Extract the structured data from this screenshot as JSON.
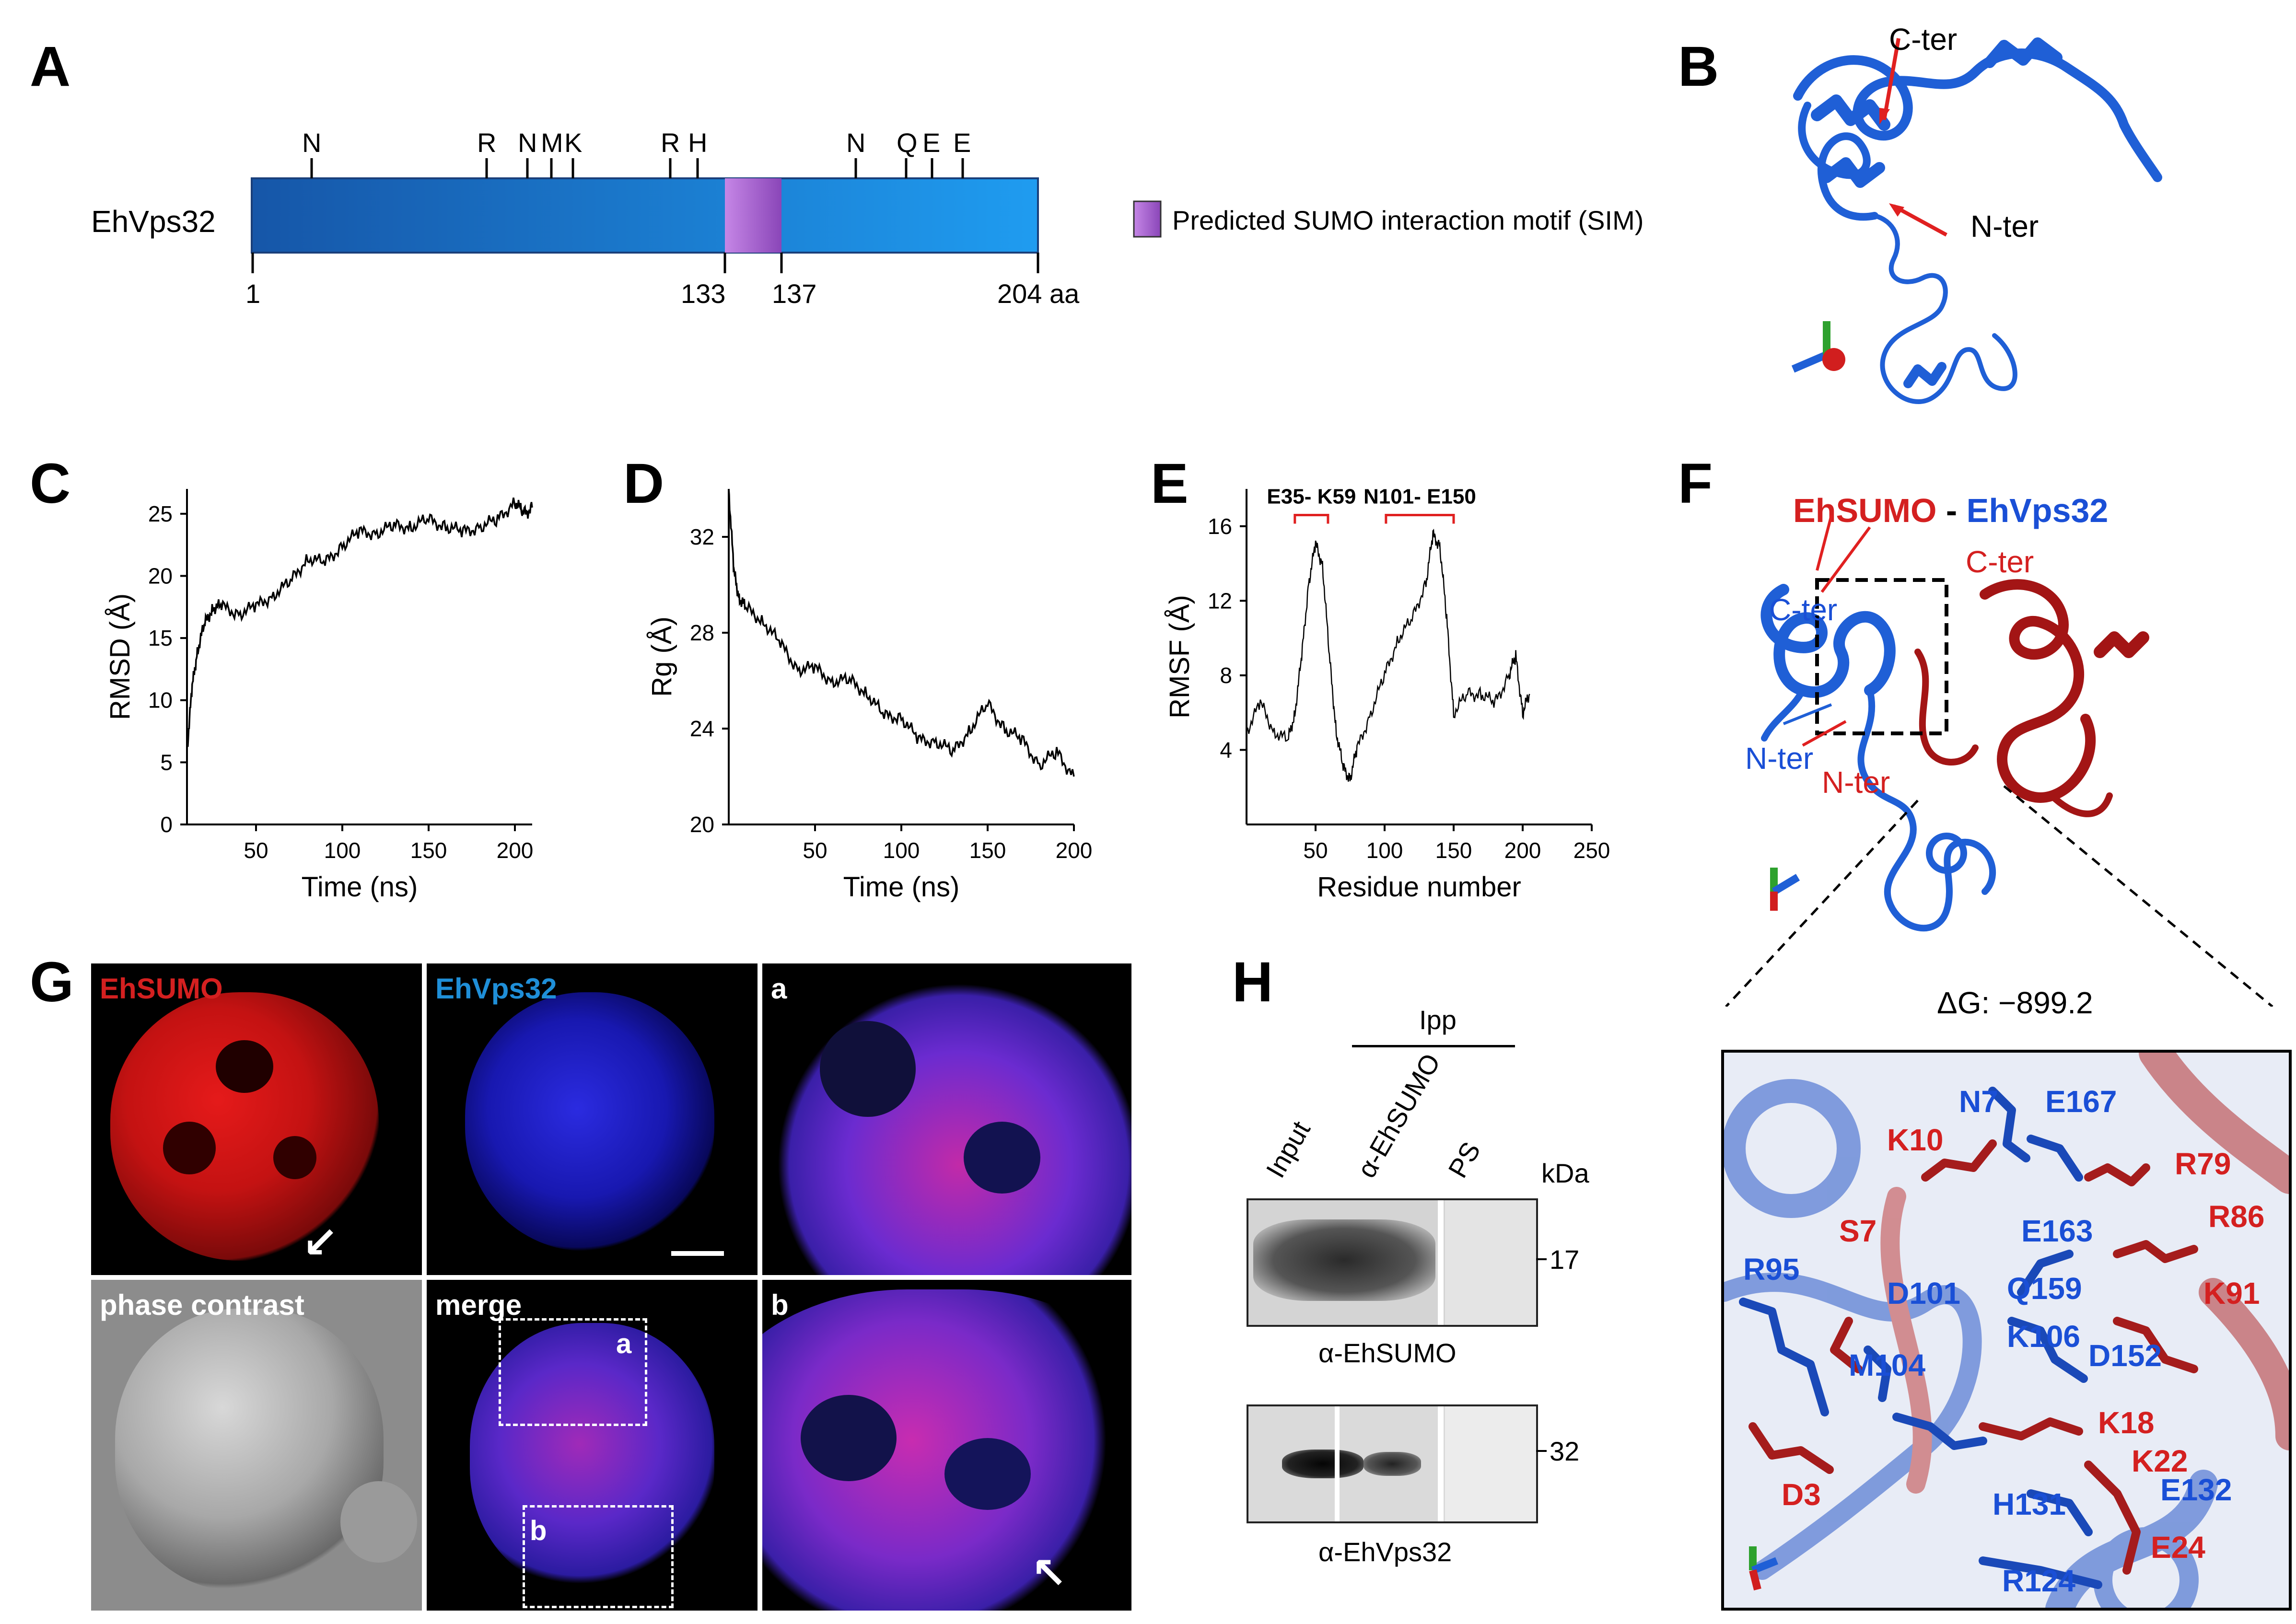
{
  "panels": {
    "A": "A",
    "B": "B",
    "C": "C",
    "D": "D",
    "E": "E",
    "F": "F",
    "G": "G",
    "H": "H"
  },
  "panelA": {
    "protein_name": "EhVps32",
    "residue_labels": [
      "N",
      "R",
      "N",
      "M",
      "K",
      "R",
      "H",
      "N",
      "Q",
      "E",
      "E"
    ],
    "axis_labels": [
      "1",
      "133",
      "137",
      "204 aa"
    ],
    "legend_text": "Predicted SUMO interaction motif (SIM)",
    "bar_color": "#1b63c8",
    "sim_color": "#b66ad8"
  },
  "panelB": {
    "cter": "C-ter",
    "nter": "N-ter"
  },
  "chart_data": [
    {
      "type": "line",
      "id": "C",
      "title": "",
      "xlabel": "Time (ns)",
      "ylabel": "RMSD (Å)",
      "xlim": [
        10,
        210
      ],
      "ylim": [
        0,
        27
      ],
      "xticks": [
        50,
        100,
        150,
        200
      ],
      "yticks": [
        0,
        5,
        10,
        15,
        20,
        25
      ],
      "x": [
        10,
        13,
        16,
        20,
        25,
        30,
        40,
        50,
        60,
        70,
        80,
        90,
        100,
        110,
        120,
        130,
        140,
        150,
        160,
        170,
        180,
        190,
        200,
        205,
        210
      ],
      "y": [
        6,
        11,
        14,
        16,
        17.5,
        17.5,
        17,
        17.5,
        18.5,
        19.5,
        21.5,
        21,
        22.5,
        23.5,
        23.5,
        24,
        24,
        24.5,
        24,
        23.5,
        24,
        24.5,
        26,
        25,
        25.5
      ]
    },
    {
      "type": "line",
      "id": "D",
      "xlabel": "Time (ns)",
      "ylabel": "Rg (Å)",
      "xlim": [
        0,
        200
      ],
      "ylim": [
        20,
        34
      ],
      "xticks": [
        50,
        100,
        150,
        200
      ],
      "yticks": [
        20,
        24,
        28,
        32
      ],
      "x": [
        0,
        3,
        6,
        10,
        20,
        30,
        40,
        50,
        60,
        70,
        80,
        90,
        100,
        110,
        120,
        130,
        140,
        150,
        160,
        170,
        180,
        190,
        200
      ],
      "y": [
        34,
        30.5,
        29.5,
        29,
        28.5,
        27.5,
        26.5,
        26.5,
        26,
        26,
        25.5,
        24.5,
        24.5,
        23.5,
        23.5,
        23,
        24,
        25,
        24,
        23.5,
        22.5,
        23,
        22
      ]
    },
    {
      "type": "line",
      "id": "E",
      "xlabel": "Residue number",
      "ylabel": "RMSF (Å)",
      "xlim": [
        0,
        250
      ],
      "ylim": [
        0,
        18
      ],
      "xticks": [
        50,
        100,
        150,
        200,
        250
      ],
      "yticks": [
        4,
        8,
        12,
        16
      ],
      "x": [
        0,
        10,
        20,
        30,
        35,
        40,
        45,
        50,
        55,
        60,
        65,
        70,
        75,
        80,
        90,
        100,
        110,
        120,
        130,
        135,
        140,
        145,
        150,
        160,
        170,
        180,
        190,
        195,
        200,
        205
      ],
      "y": [
        5,
        6.5,
        5,
        4.5,
        6,
        9,
        13,
        15,
        14,
        9,
        5,
        3,
        2.5,
        4,
        6,
        8,
        10,
        11,
        13,
        15.5,
        15,
        11,
        6,
        7,
        7,
        6.5,
        8,
        9,
        6,
        7
      ],
      "annotations": [
        "E35- K59",
        "N101- E150"
      ]
    }
  ],
  "panelF": {
    "title_part1": "EhSUMO",
    "title_sep": " - ",
    "title_part2": "EhVps32",
    "cter_red": "C-ter",
    "cter_blue": "C-ter",
    "nter_blue": "N-ter",
    "nter_red": "N-ter",
    "deltaG": "ΔG: −899.2",
    "residues_blue": [
      "N7",
      "E167",
      "E163",
      "R95",
      "D101",
      "Q159",
      "K106",
      "D152",
      "M104",
      "H131",
      "E132",
      "R124"
    ],
    "residues_red": [
      "K10",
      "R79",
      "R86",
      "S7",
      "K91",
      "K18",
      "K22",
      "D3",
      "E24"
    ]
  },
  "panelG": {
    "ehsumo": "EhSUMO",
    "ehvps32": "EhVps32",
    "a": "a",
    "b": "b",
    "phase": "phase contrast",
    "merge": "merge",
    "box_a": "a",
    "box_b": "b"
  },
  "panelH": {
    "ipp": "Ipp",
    "lanes": [
      "Input",
      "α-EhSUMO",
      "PS"
    ],
    "kda": "kDa",
    "mw1": "17",
    "mw2": "32",
    "blot1_label": "α-EhSUMO",
    "blot2_label": "α-EhVps32"
  }
}
